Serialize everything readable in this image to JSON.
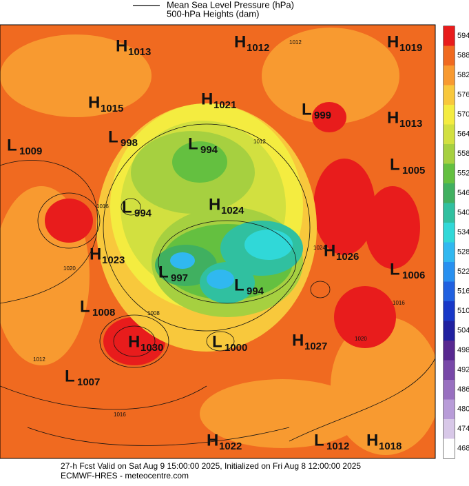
{
  "header": {
    "legend": [
      "Mean Sea Level Pressure (hPa)",
      "500-hPa Heights (dam)"
    ]
  },
  "colorbar": {
    "ticks": [
      594,
      588,
      582,
      576,
      570,
      564,
      558,
      552,
      546,
      540,
      534,
      528,
      522,
      516,
      510,
      504,
      498,
      492,
      486,
      480,
      474,
      468
    ],
    "colors": [
      "#e81c1c",
      "#f06a20",
      "#f89a30",
      "#f8c83c",
      "#f4ec40",
      "#d2e040",
      "#a6d040",
      "#64c040",
      "#40b060",
      "#30c0a0",
      "#30d8d8",
      "#30b8f0",
      "#2890f0",
      "#2060e0",
      "#1838c8",
      "#2020a0",
      "#582890",
      "#7848a8",
      "#9870c0",
      "#b89cd8",
      "#d8c8e8",
      "#ffffff"
    ]
  },
  "pressure_centers": [
    {
      "letter": "H",
      "value": 1013
    },
    {
      "letter": "H",
      "value": 1012
    },
    {
      "letter": "H",
      "value": 1019
    },
    {
      "letter": "H",
      "value": 1015
    },
    {
      "letter": "H",
      "value": 1021
    },
    {
      "letter": "L",
      "value": 999
    },
    {
      "letter": "H",
      "value": 1013
    },
    {
      "letter": "L",
      "value": 1009
    },
    {
      "letter": "L",
      "value": 998
    },
    {
      "letter": "L",
      "value": 994
    },
    {
      "letter": "L",
      "value": 1005
    },
    {
      "letter": "L",
      "value": 994
    },
    {
      "letter": "H",
      "value": 1024
    },
    {
      "letter": "H",
      "value": 1023
    },
    {
      "letter": "H",
      "value": 1026
    },
    {
      "letter": "L",
      "value": 997
    },
    {
      "letter": "L",
      "value": 1006
    },
    {
      "letter": "L",
      "value": 994
    },
    {
      "letter": "L",
      "value": 1008
    },
    {
      "letter": "H",
      "value": 1030
    },
    {
      "letter": "L",
      "value": 1000
    },
    {
      "letter": "H",
      "value": 1027
    },
    {
      "letter": "L",
      "value": 1007
    },
    {
      "letter": "H",
      "value": 1022
    },
    {
      "letter": "L",
      "value": 1012
    },
    {
      "letter": "H",
      "value": 1018
    }
  ],
  "contour_labels": [
    1008,
    1012,
    1016,
    1020,
    1024,
    1012,
    1016,
    1012,
    1016,
    1020
  ],
  "footer": {
    "line1": "27-h Fcst Valid on Sat Aug  9 15:00:00 2025, Initialized on Fri Aug  8 12:00:00 2025",
    "line2": "ECMWF-HRES  - meteocentre.com"
  }
}
